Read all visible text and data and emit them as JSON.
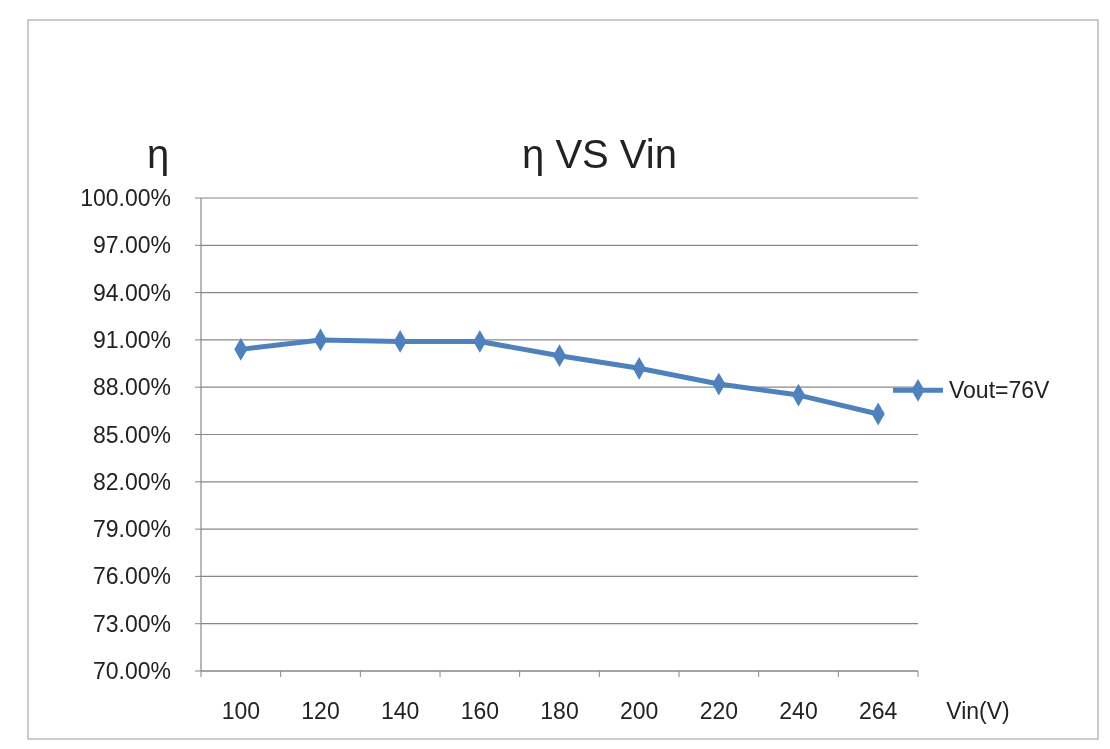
{
  "chart_data": {
    "type": "line",
    "title": "η VS Vin",
    "ylabel": "η",
    "xlabel": "Vin(V)",
    "categories": [
      "100",
      "120",
      "140",
      "160",
      "180",
      "200",
      "220",
      "240",
      "264"
    ],
    "series": [
      {
        "name": "Vout=76V",
        "color": "#4f81bd",
        "values": [
          90.4,
          91.0,
          90.9,
          90.9,
          90.0,
          89.2,
          88.2,
          87.5,
          86.3
        ]
      }
    ],
    "ylim": [
      70,
      100
    ],
    "yticks": [
      {
        "value": 70,
        "label": "70.00%"
      },
      {
        "value": 73,
        "label": "73.00%"
      },
      {
        "value": 76,
        "label": "76.00%"
      },
      {
        "value": 79,
        "label": "79.00%"
      },
      {
        "value": 82,
        "label": "82.00%"
      },
      {
        "value": 85,
        "label": "85.00%"
      },
      {
        "value": 88,
        "label": "88.00%"
      },
      {
        "value": 91,
        "label": "91.00%"
      },
      {
        "value": 94,
        "label": "94.00%"
      },
      {
        "value": 97,
        "label": "97.00%"
      },
      {
        "value": 100,
        "label": "100.00%"
      }
    ],
    "grid": "y",
    "legend": "right",
    "marker": "diamond",
    "line_style": "solid"
  }
}
